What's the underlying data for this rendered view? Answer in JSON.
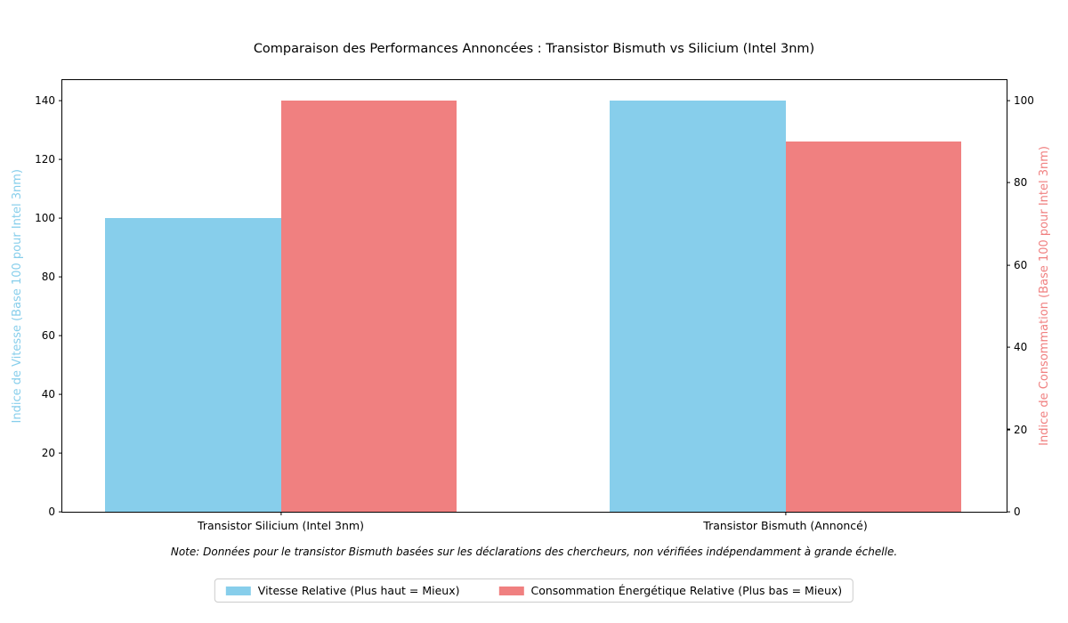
{
  "chart_data": {
    "type": "bar",
    "title": "Comparaison des Performances Annoncées : Transistor Bismuth vs Silicium (Intel 3nm)",
    "categories": [
      "Transistor Silicium (Intel 3nm)",
      "Transistor Bismuth (Annoncé)"
    ],
    "series": [
      {
        "name": "Vitesse Relative (Plus haut = Mieux)",
        "axis": "left",
        "color": "#87CEEB",
        "values": [
          100,
          140
        ]
      },
      {
        "name": "Consommation Énergétique Relative (Plus bas = Mieux)",
        "axis": "right",
        "color": "#F08080",
        "values": [
          100,
          90
        ]
      }
    ],
    "left_axis": {
      "label": "Indice de Vitesse (Base 100 pour Intel 3nm)",
      "color": "#87CEEB",
      "ticks": [
        0,
        20,
        40,
        60,
        80,
        100,
        120,
        140
      ],
      "range": [
        0,
        147
      ]
    },
    "right_axis": {
      "label": "Indice de Consommation (Base 100 pour Intel 3nm)",
      "color": "#F08080",
      "ticks": [
        0,
        20,
        40,
        60,
        80,
        100
      ],
      "range": [
        0,
        105
      ]
    },
    "note": "Note: Données pour le transistor Bismuth basées sur les déclarations des chercheurs, non vérifiées indépendamment à grande échelle.",
    "legend_position": "bottom-center",
    "grid": false
  }
}
